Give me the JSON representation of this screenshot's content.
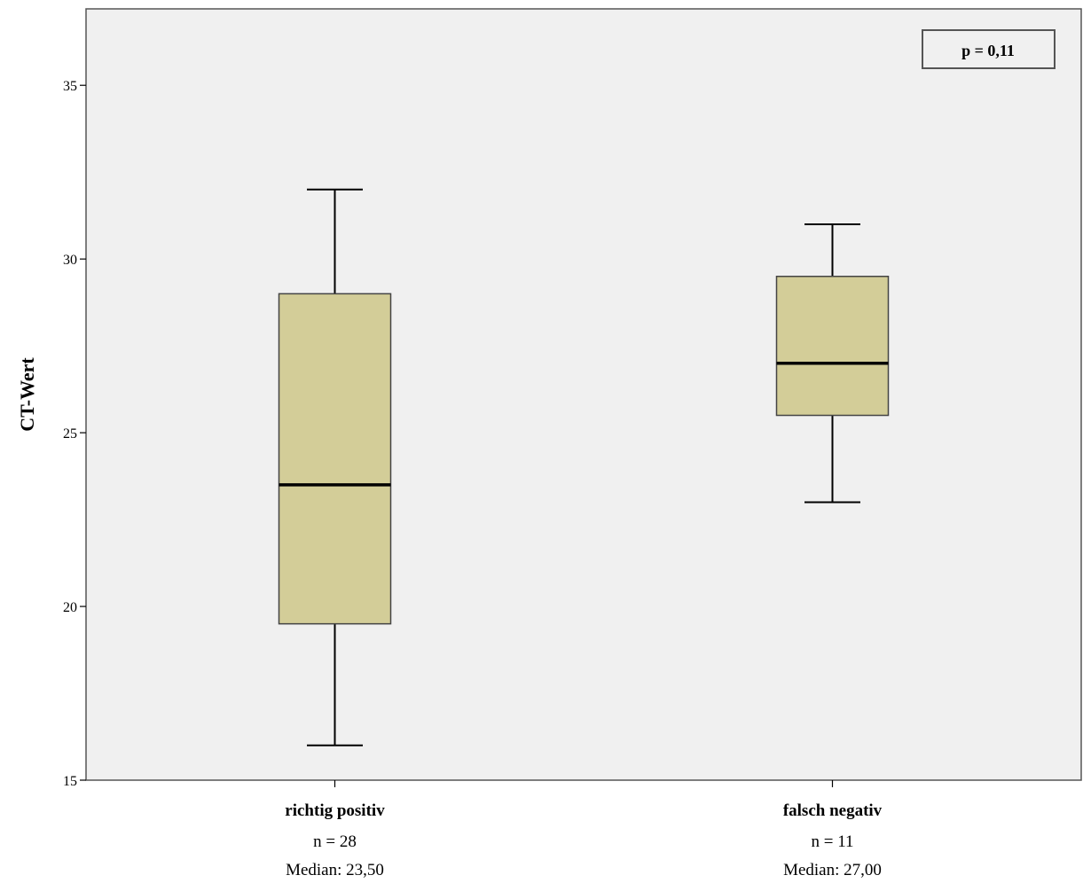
{
  "chart_data": {
    "type": "boxplot",
    "title": "",
    "xlabel": "",
    "ylabel": "CT-Wert",
    "ylim": [
      15,
      37.2
    ],
    "yticks": [
      15,
      20,
      25,
      30,
      35
    ],
    "grid": false,
    "colors": {
      "box": "#d3cd98",
      "plot_bg": "#f0f0f0",
      "line": "#000000"
    },
    "annotation": "p = 0,11",
    "categories": [
      {
        "name": "richtig positiv",
        "n_label": "n = 28",
        "median_label": "Median: 23,50",
        "min": 16,
        "q1": 19.5,
        "median": 23.5,
        "q3": 29,
        "max": 32
      },
      {
        "name": "falsch negativ",
        "n_label": "n = 11",
        "median_label": "Median: 27,00",
        "min": 23,
        "q1": 25.5,
        "median": 27,
        "q3": 29.5,
        "max": 31
      }
    ]
  }
}
